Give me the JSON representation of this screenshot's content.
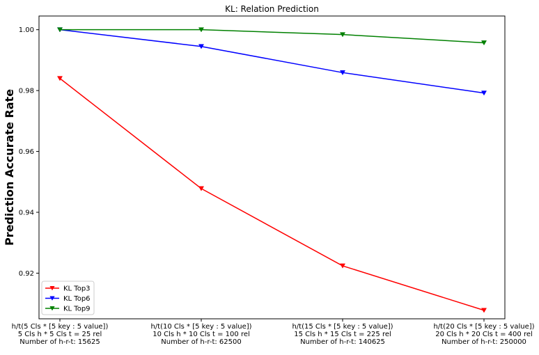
{
  "chart_data": {
    "type": "line",
    "title": "KL: Relation Prediction",
    "xlabel": "",
    "ylabel": "Prediction Accurate Rate",
    "ylim": [
      0.905,
      1.0045
    ],
    "yticks": [
      0.92,
      0.94,
      0.96,
      0.98,
      1.0
    ],
    "ytick_labels": [
      "0.92",
      "0.94",
      "0.96",
      "0.98",
      "1.00"
    ],
    "categories": [
      [
        "h/t(5 Cls * [5 key : 5 value])",
        "5 Cls h * 5 Cls t = 25 rel",
        "Number of h-r-t: 15625"
      ],
      [
        "h/t(10 Cls * [5 key : 5 value])",
        "10 Cls h * 10 Cls t = 100 rel",
        "Number of h-r-t: 62500"
      ],
      [
        "h/t(15 Cls * [5 key : 5 value])",
        "15 Cls h * 15 Cls t = 225 rel",
        "Number of h-r-t: 140625"
      ],
      [
        "h/t(20 Cls * [5 key : 5 value])",
        "20 Cls h * 20 Cls t = 400 rel",
        "Number of h-r-t: 250000"
      ]
    ],
    "series": [
      {
        "name": "KL Top3",
        "color": "#ff0000",
        "marker": "triangle-down",
        "values": [
          0.984,
          0.9478,
          0.9224,
          0.9078
        ]
      },
      {
        "name": "KL Top6",
        "color": "#0000ff",
        "marker": "triangle-down",
        "values": [
          1.0,
          0.9945,
          0.9859,
          0.9792
        ]
      },
      {
        "name": "KL Top9",
        "color": "#008000",
        "marker": "triangle-down",
        "values": [
          1.0,
          1.0,
          0.9984,
          0.9957
        ]
      }
    ],
    "legend_position": "lower-left",
    "grid": false
  }
}
